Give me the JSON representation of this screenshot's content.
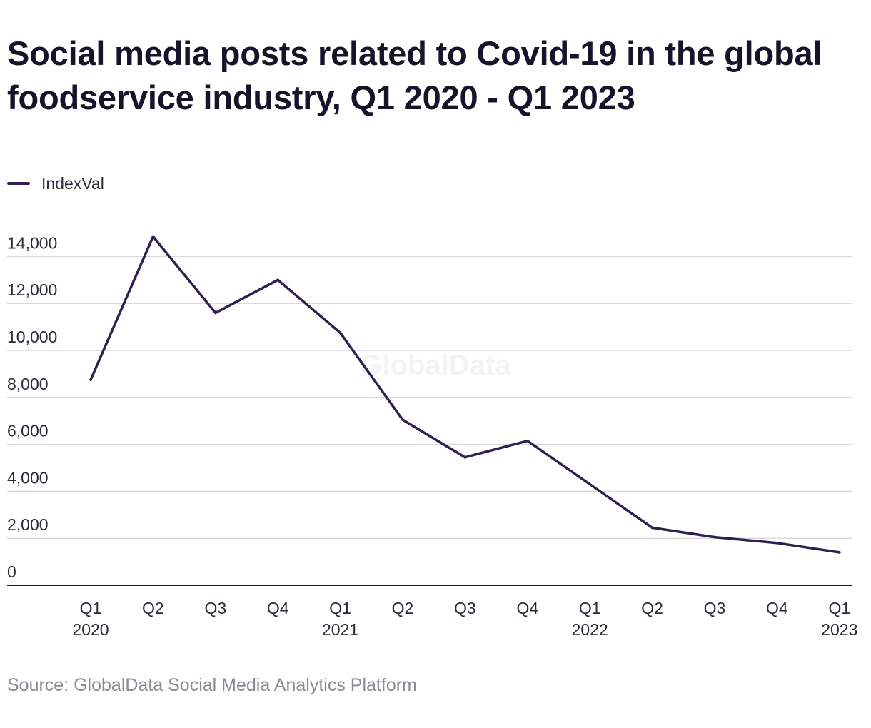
{
  "colors": {
    "series_line": "#30204f",
    "gridline": "#d9d9de",
    "axis": "#1a1a1a",
    "watermark": "#f3f3f5"
  },
  "watermark": "GlobalData",
  "source": "Source: GlobalData Social Media Analytics Platform",
  "chart_data": {
    "type": "line",
    "title": "Social media posts related to Covid-19 in the global foodservice industry, Q1 2020 - Q1 2023",
    "xlabel": "",
    "ylabel": "",
    "categories": [
      [
        "Q1",
        "2020"
      ],
      [
        "Q2",
        ""
      ],
      [
        "Q3",
        ""
      ],
      [
        "Q4",
        ""
      ],
      [
        "Q1",
        "2021"
      ],
      [
        "Q2",
        ""
      ],
      [
        "Q3",
        ""
      ],
      [
        "Q4",
        ""
      ],
      [
        "Q1",
        "2022"
      ],
      [
        "Q2",
        ""
      ],
      [
        "Q3",
        ""
      ],
      [
        "Q4",
        ""
      ],
      [
        "Q1",
        "2023"
      ]
    ],
    "series": [
      {
        "name": "IndexVal",
        "values": [
          8750,
          14850,
          11600,
          13000,
          10750,
          7050,
          5450,
          6150,
          4300,
          2450,
          2050,
          1800,
          1400
        ]
      }
    ],
    "yticks": [
      0,
      2000,
      4000,
      6000,
      8000,
      10000,
      12000,
      14000
    ],
    "ytick_labels": [
      "0",
      "2,000",
      "4,000",
      "6,000",
      "8,000",
      "10,000",
      "12,000",
      "14,000"
    ],
    "ylim": [
      0,
      14000
    ],
    "grid": true,
    "legend_position": "top-left"
  }
}
